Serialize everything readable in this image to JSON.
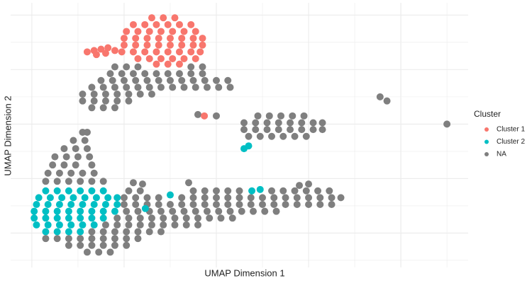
{
  "chart_data": {
    "type": "scatter",
    "x_label": "UMAP Dimension 1",
    "y_label": "UMAP Dimension 2",
    "legend_title": "Cluster",
    "legend": "right",
    "grid": true,
    "xlim": [
      -0.46,
      9.46
    ],
    "ylim": [
      -0.26,
      9.45
    ],
    "xticks": [
      0,
      1,
      2,
      3,
      4,
      5,
      6,
      7,
      8,
      9
    ],
    "yticks": [
      0,
      1,
      2,
      3,
      4,
      5,
      6,
      7,
      8,
      9
    ],
    "series": [
      {
        "name": "Cluster 1",
        "color": "#F8766D",
        "x": [
          2.6,
          2.85,
          3.1,
          2.2,
          2.45,
          2.7,
          2.95,
          3.2,
          3.45,
          2.05,
          2.3,
          2.55,
          2.8,
          3.05,
          3.3,
          3.55,
          2.0,
          2.25,
          2.5,
          2.75,
          3.0,
          3.25,
          3.5,
          3.7,
          2.0,
          2.25,
          2.5,
          2.75,
          3.0,
          3.25,
          3.5,
          3.7,
          1.95,
          2.2,
          2.45,
          2.7,
          2.95,
          3.2,
          3.45,
          3.65,
          2.3,
          2.55,
          2.8,
          3.05,
          3.3,
          3.55,
          2.7,
          2.95,
          3.2,
          1.2,
          1.35,
          1.5,
          1.65,
          1.8,
          1.4,
          1.6,
          3.74
        ],
        "values": [
          8.9,
          8.9,
          8.9,
          8.65,
          8.65,
          8.65,
          8.65,
          8.65,
          8.65,
          8.4,
          8.4,
          8.4,
          8.4,
          8.4,
          8.4,
          8.4,
          8.15,
          8.15,
          8.15,
          8.15,
          8.15,
          8.15,
          8.15,
          8.15,
          7.9,
          7.9,
          7.9,
          7.9,
          7.9,
          7.9,
          7.9,
          7.9,
          7.65,
          7.65,
          7.65,
          7.65,
          7.65,
          7.65,
          7.65,
          7.65,
          7.4,
          7.4,
          7.4,
          7.4,
          7.4,
          7.4,
          7.2,
          7.2,
          7.2,
          7.65,
          7.7,
          7.75,
          7.8,
          7.7,
          7.55,
          7.6,
          5.3
        ]
      },
      {
        "name": "Cluster 2",
        "color": "#00BFC4",
        "x": [
          0.3,
          0.55,
          0.8,
          1.05,
          1.3,
          1.55,
          0.15,
          0.4,
          0.65,
          0.9,
          1.15,
          1.4,
          1.65,
          1.85,
          0.1,
          0.35,
          0.6,
          0.85,
          1.1,
          1.35,
          1.6,
          1.85,
          0.05,
          0.3,
          0.55,
          0.8,
          1.05,
          1.3,
          1.55,
          1.8,
          0.05,
          0.3,
          0.55,
          0.8,
          1.05,
          1.3,
          1.55,
          0.1,
          0.35,
          0.6,
          0.85,
          1.1,
          1.35,
          0.3,
          0.55,
          0.8,
          1.05,
          2.46,
          3.0,
          4.6,
          4.7,
          4.77,
          4.95
        ],
        "values": [
          2.55,
          2.55,
          2.55,
          2.55,
          2.55,
          2.55,
          2.3,
          2.3,
          2.3,
          2.3,
          2.3,
          2.3,
          2.3,
          2.3,
          2.05,
          2.05,
          2.05,
          2.05,
          2.05,
          2.05,
          2.05,
          2.05,
          1.8,
          1.8,
          1.8,
          1.8,
          1.8,
          1.8,
          1.8,
          1.8,
          1.55,
          1.55,
          1.55,
          1.55,
          1.55,
          1.55,
          1.55,
          1.3,
          1.3,
          1.3,
          1.3,
          1.3,
          1.3,
          1.05,
          1.05,
          1.05,
          1.05,
          1.9,
          2.4,
          4.1,
          4.2,
          2.55,
          2.6
        ]
      },
      {
        "name": "NA",
        "color": "#7F7F7F",
        "x": [
          1.8,
          2.05,
          2.3,
          3.45,
          3.7,
          1.7,
          1.95,
          2.2,
          2.45,
          2.7,
          2.95,
          3.2,
          3.45,
          3.7,
          1.5,
          1.75,
          2.0,
          2.25,
          2.5,
          2.75,
          3.0,
          3.25,
          3.5,
          3.75,
          4.0,
          4.25,
          1.3,
          1.55,
          1.8,
          2.05,
          2.3,
          2.55,
          2.8,
          3.05,
          3.3,
          3.55,
          3.8,
          4.05,
          4.3,
          1.1,
          1.35,
          1.6,
          1.85,
          2.1,
          2.35,
          2.6,
          1.1,
          1.35,
          1.6,
          1.85,
          2.1,
          1.3,
          1.55,
          1.8,
          4.9,
          5.15,
          5.4,
          5.65,
          5.9,
          4.6,
          4.85,
          5.1,
          5.35,
          5.6,
          5.85,
          6.1,
          6.3,
          4.6,
          4.85,
          5.1,
          5.35,
          5.6,
          5.85,
          6.1,
          6.3,
          4.7,
          4.95,
          5.2,
          5.45,
          5.7,
          5.95,
          3.6,
          4.0,
          7.55,
          7.7,
          9.0,
          1.1,
          1.2,
          0.9,
          1.15,
          0.7,
          0.95,
          1.2,
          0.5,
          0.75,
          1.0,
          1.25,
          0.45,
          0.7,
          0.95,
          1.3,
          0.35,
          0.6,
          0.85,
          1.1,
          1.35,
          0.3,
          0.55,
          0.8,
          1.05,
          1.3,
          1.55,
          0.3,
          0.55,
          0.8,
          1.05,
          1.3,
          1.55,
          1.8,
          2.05,
          2.3,
          0.8,
          1.05,
          1.3,
          1.55,
          1.8,
          2.05,
          1.2,
          1.45,
          1.7,
          2.1,
          2.35,
          3.5,
          3.75,
          4.0,
          4.25,
          4.5,
          5.2,
          5.45,
          5.7,
          5.95,
          6.2,
          6.45,
          2.0,
          2.25,
          2.5,
          2.75,
          3.25,
          3.5,
          3.75,
          4.0,
          4.25,
          4.5,
          4.75,
          5.0,
          5.25,
          5.5,
          5.75,
          6.0,
          6.25,
          6.5,
          6.7,
          2.0,
          2.25,
          2.5,
          2.75,
          3.0,
          3.25,
          3.5,
          3.75,
          4.0,
          4.25,
          4.5,
          4.75,
          5.0,
          5.25,
          5.5,
          5.75,
          6.0,
          6.25,
          6.5,
          2.05,
          2.3,
          2.55,
          2.8,
          3.05,
          3.3,
          3.55,
          3.8,
          4.05,
          4.3,
          4.55,
          4.8,
          5.05,
          5.3,
          1.85,
          2.1,
          2.35,
          2.6,
          2.85,
          3.1,
          3.35,
          3.6,
          3.85,
          4.1,
          4.35,
          1.6,
          1.85,
          2.1,
          2.35,
          2.6,
          2.85,
          3.1,
          3.35,
          3.6,
          1.3,
          1.55,
          1.8,
          2.05,
          2.3,
          2.55,
          2.8,
          2.2,
          2.4,
          3.4,
          5.8,
          6.0
        ],
        "values": [
          7.1,
          7.1,
          7.1,
          7.1,
          7.1,
          6.85,
          6.85,
          6.85,
          6.85,
          6.85,
          6.85,
          6.85,
          6.85,
          6.85,
          6.6,
          6.6,
          6.6,
          6.6,
          6.6,
          6.6,
          6.6,
          6.6,
          6.6,
          6.6,
          6.6,
          6.6,
          6.35,
          6.35,
          6.35,
          6.35,
          6.35,
          6.35,
          6.35,
          6.35,
          6.35,
          6.35,
          6.35,
          6.35,
          6.35,
          6.1,
          6.1,
          6.1,
          6.1,
          6.1,
          6.1,
          6.1,
          5.85,
          5.85,
          5.85,
          5.85,
          5.85,
          5.6,
          5.6,
          5.6,
          5.3,
          5.3,
          5.3,
          5.3,
          5.3,
          5.05,
          5.05,
          5.05,
          5.05,
          5.05,
          5.05,
          5.05,
          5.05,
          4.8,
          4.8,
          4.8,
          4.8,
          4.8,
          4.8,
          4.8,
          4.8,
          4.55,
          4.55,
          4.55,
          4.55,
          4.55,
          4.55,
          5.35,
          5.3,
          6.0,
          5.85,
          5.0,
          4.7,
          4.7,
          4.4,
          4.4,
          4.1,
          4.1,
          4.1,
          3.8,
          3.8,
          3.8,
          3.8,
          3.5,
          3.5,
          3.5,
          3.5,
          3.2,
          3.2,
          3.2,
          3.2,
          3.2,
          2.9,
          2.9,
          2.9,
          2.9,
          2.9,
          2.9,
          0.8,
          0.8,
          0.8,
          0.8,
          0.8,
          0.8,
          0.8,
          0.8,
          0.8,
          0.55,
          0.55,
          0.55,
          0.55,
          0.55,
          0.55,
          0.3,
          0.3,
          0.3,
          2.55,
          2.55,
          2.55,
          2.55,
          2.55,
          2.55,
          2.55,
          2.55,
          2.55,
          2.55,
          2.55,
          2.55,
          2.55,
          2.3,
          2.3,
          2.3,
          2.3,
          2.3,
          2.3,
          2.3,
          2.3,
          2.3,
          2.3,
          2.3,
          2.3,
          2.3,
          2.3,
          2.3,
          2.3,
          2.3,
          2.3,
          2.3,
          2.05,
          2.05,
          2.05,
          2.05,
          2.05,
          2.05,
          2.05,
          2.05,
          2.05,
          2.05,
          2.05,
          2.05,
          2.05,
          2.05,
          2.05,
          2.05,
          2.05,
          2.05,
          2.05,
          1.8,
          1.8,
          1.8,
          1.8,
          1.8,
          1.8,
          1.8,
          1.8,
          1.8,
          1.8,
          1.8,
          1.8,
          1.8,
          1.8,
          1.55,
          1.55,
          1.55,
          1.55,
          1.55,
          1.55,
          1.55,
          1.55,
          1.55,
          1.55,
          1.55,
          1.3,
          1.3,
          1.3,
          1.3,
          1.3,
          1.3,
          1.3,
          1.3,
          1.3,
          1.05,
          1.05,
          1.05,
          1.05,
          1.05,
          1.05,
          1.05,
          2.85,
          2.8,
          2.85,
          2.75,
          2.8
        ]
      }
    ]
  }
}
